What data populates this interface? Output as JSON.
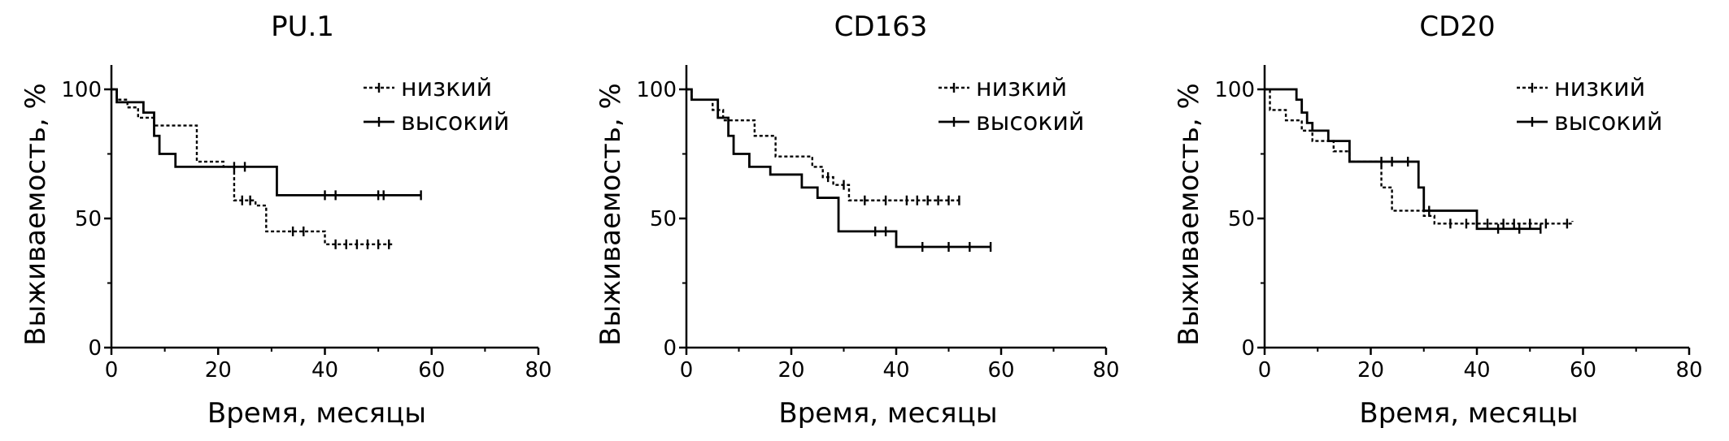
{
  "chart_data": [
    {
      "type": "line",
      "title": "PU.1",
      "xlabel": "Время, месяцы",
      "ylabel": "Выживаемость, %",
      "xlim": [
        0,
        80
      ],
      "ylim": [
        0,
        100
      ],
      "xticks": [
        0,
        20,
        40,
        60,
        80
      ],
      "yticks": [
        0,
        50,
        100
      ],
      "grid": false,
      "legend_position": "top-right",
      "series": [
        {
          "name": "низкий",
          "style": "dotted",
          "step_points": [
            [
              0,
              100
            ],
            [
              1,
              96
            ],
            [
              3,
              93
            ],
            [
              5,
              89
            ],
            [
              8,
              86
            ],
            [
              16,
              72
            ],
            [
              21,
              70
            ],
            [
              23,
              57
            ],
            [
              27,
              55
            ],
            [
              29,
              45
            ],
            [
              40,
              40
            ],
            [
              53,
              40
            ]
          ],
          "censor_x": [
            24.5,
            26,
            34,
            36,
            42,
            44,
            46,
            48,
            50,
            52
          ]
        },
        {
          "name": "высокий",
          "style": "solid",
          "step_points": [
            [
              0,
              100
            ],
            [
              1,
              95
            ],
            [
              6,
              91
            ],
            [
              8,
              82
            ],
            [
              9,
              75
            ],
            [
              12,
              70
            ],
            [
              22,
              70
            ],
            [
              29,
              70
            ],
            [
              31,
              59
            ],
            [
              58,
              59
            ]
          ],
          "censor_x": [
            23,
            25,
            40,
            42,
            50,
            51,
            58
          ]
        }
      ]
    },
    {
      "type": "line",
      "title": "CD163",
      "xlabel": "Время, месяцы",
      "ylabel": "Выживаемость, %",
      "xlim": [
        0,
        80
      ],
      "ylim": [
        0,
        100
      ],
      "xticks": [
        0,
        20,
        40,
        60,
        80
      ],
      "yticks": [
        0,
        50,
        100
      ],
      "grid": false,
      "legend_position": "top-right",
      "series": [
        {
          "name": "низкий",
          "style": "dotted",
          "step_points": [
            [
              0,
              100
            ],
            [
              1,
              96
            ],
            [
              5,
              92
            ],
            [
              7,
              88
            ],
            [
              13,
              82
            ],
            [
              17,
              74
            ],
            [
              24,
              70
            ],
            [
              26,
              66
            ],
            [
              28,
              63
            ],
            [
              31,
              57
            ],
            [
              52,
              57
            ]
          ],
          "censor_x": [
            27,
            30,
            34,
            38,
            42,
            44,
            46,
            48,
            50,
            52
          ]
        },
        {
          "name": "высокий",
          "style": "solid",
          "step_points": [
            [
              0,
              100
            ],
            [
              1,
              96
            ],
            [
              6,
              89
            ],
            [
              8,
              82
            ],
            [
              9,
              75
            ],
            [
              12,
              70
            ],
            [
              16,
              67
            ],
            [
              22,
              62
            ],
            [
              25,
              58
            ],
            [
              29,
              45
            ],
            [
              40,
              39
            ],
            [
              58,
              39
            ]
          ],
          "censor_x": [
            36,
            38,
            45,
            50,
            54,
            58
          ]
        }
      ]
    },
    {
      "type": "line",
      "title": "CD20",
      "xlabel": "Время, месяцы",
      "ylabel": "Выживаемость, %",
      "xlim": [
        0,
        80
      ],
      "ylim": [
        0,
        100
      ],
      "xticks": [
        0,
        20,
        40,
        60,
        80
      ],
      "yticks": [
        0,
        50,
        100
      ],
      "grid": false,
      "legend_position": "top-right",
      "series": [
        {
          "name": "низкий",
          "style": "dotted",
          "step_points": [
            [
              0,
              100
            ],
            [
              1,
              92
            ],
            [
              4,
              88
            ],
            [
              7,
              84
            ],
            [
              9,
              80
            ],
            [
              13,
              76
            ],
            [
              16,
              72
            ],
            [
              22,
              62
            ],
            [
              24,
              53
            ],
            [
              30,
              51
            ],
            [
              32,
              48
            ],
            [
              58,
              49
            ]
          ],
          "censor_x": [
            35,
            38,
            42,
            45,
            47,
            50,
            53,
            57
          ]
        },
        {
          "name": "высокий",
          "style": "solid",
          "step_points": [
            [
              0,
              100
            ],
            [
              6,
              96
            ],
            [
              7,
              91
            ],
            [
              8,
              87
            ],
            [
              9,
              84
            ],
            [
              12,
              80
            ],
            [
              16,
              72
            ],
            [
              28,
              72
            ],
            [
              29,
              62
            ],
            [
              30,
              53
            ],
            [
              40,
              46
            ],
            [
              52,
              46
            ]
          ],
          "censor_x": [
            22,
            24,
            27,
            31,
            44,
            48,
            52
          ]
        }
      ]
    }
  ]
}
